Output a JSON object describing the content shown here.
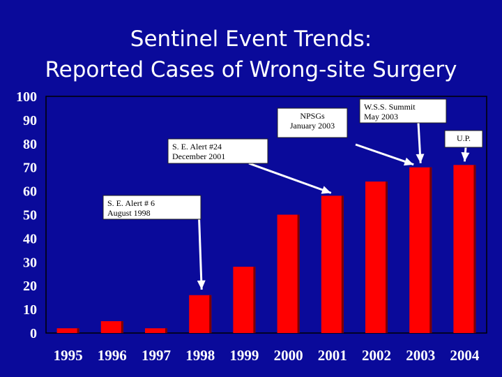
{
  "chart_data": {
    "type": "bar",
    "title": "Sentinel Event Trends:",
    "subtitle": "Reported Cases of Wrong-site Surgery",
    "categories": [
      "1995",
      "1996",
      "1997",
      "1998",
      "1999",
      "2000",
      "2001",
      "2002",
      "2003",
      "2004"
    ],
    "values": [
      2,
      5,
      2,
      16,
      28,
      50,
      58,
      64,
      70,
      71
    ],
    "ylim": [
      0,
      100
    ],
    "yticks": [
      "0",
      "10",
      "20",
      "30",
      "40",
      "50",
      "60",
      "70",
      "80",
      "90",
      "100"
    ],
    "xlabel": "",
    "ylabel": "",
    "grid": false,
    "colors": {
      "background": "#0a0a9a",
      "bar": "#ff0000",
      "text": "#ffffff",
      "annotation_box": "#ffffff"
    },
    "annotations": [
      {
        "lines": [
          "S. E. Alert # 6",
          "August 1998"
        ],
        "points_to": "1998"
      },
      {
        "lines": [
          "S. E. Alert #24",
          "December 2001"
        ],
        "points_to": "2001"
      },
      {
        "lines": [
          "NPSGs",
          "January 2003"
        ],
        "points_to": "2003"
      },
      {
        "lines": [
          "W.S.S. Summit",
          "May 2003"
        ],
        "points_to": "2003"
      },
      {
        "lines": [
          "U.P."
        ],
        "points_to": "2004"
      }
    ]
  }
}
